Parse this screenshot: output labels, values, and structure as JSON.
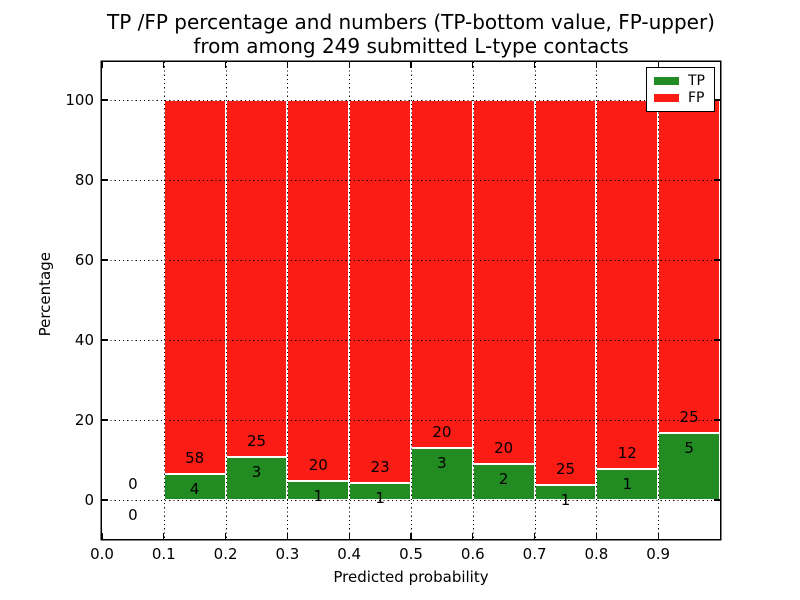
{
  "figure": {
    "title_line1": "TP /FP percentage and numbers (TP-bottom value, FP-upper)",
    "title_line2": "from among 249 submitted L-type contacts"
  },
  "chart_data": {
    "type": "bar",
    "stacked": true,
    "normalized_to_percent": 100,
    "title": "TP /FP percentage and numbers (TP-bottom value, FP-upper) from among 249 submitted L-type contacts",
    "total_contacts": 249,
    "xlabel": "Predicted probability",
    "ylabel": "Percentage",
    "xlim": [
      0.0,
      1.0
    ],
    "ylim": [
      -9.75,
      109.5
    ],
    "grid": "dotted, drawn above bars",
    "xtick_values": [
      0.0,
      0.1,
      0.2,
      0.3,
      0.4,
      0.5,
      0.6,
      0.7,
      0.8,
      0.9
    ],
    "xtick_labels": [
      "0.0",
      "0.1",
      "0.2",
      "0.3",
      "0.4",
      "0.5",
      "0.6",
      "0.7",
      "0.8",
      "0.9"
    ],
    "ytick_values": [
      0,
      20,
      40,
      60,
      80,
      100
    ],
    "ytick_labels": [
      "0",
      "20",
      "40",
      "60",
      "80",
      "100"
    ],
    "legend": {
      "position": "upper right",
      "entries": [
        {
          "label": "TP",
          "color_key": "tp"
        },
        {
          "label": "FP",
          "color_key": "fp"
        }
      ]
    },
    "colors": {
      "tp": "#228b22",
      "fp": "#fb1d15"
    },
    "series": [
      {
        "name": "TP",
        "counts": [
          0,
          4,
          3,
          1,
          1,
          3,
          2,
          1,
          1,
          5
        ]
      },
      {
        "name": "FP",
        "counts": [
          0,
          58,
          25,
          20,
          23,
          20,
          20,
          25,
          12,
          25
        ]
      }
    ],
    "bins": [
      {
        "x0": 0.0,
        "x1": 0.1,
        "tp_count": 0,
        "fp_count": 0,
        "tp_pct": 0,
        "fp_pct": 0,
        "draw_bar": false
      },
      {
        "x0": 0.1,
        "x1": 0.2,
        "tp_count": 4,
        "fp_count": 58,
        "tp_pct": 6.45,
        "fp_pct": 93.55,
        "draw_bar": true
      },
      {
        "x0": 0.2,
        "x1": 0.3,
        "tp_count": 3,
        "fp_count": 25,
        "tp_pct": 10.71,
        "fp_pct": 89.29,
        "draw_bar": true
      },
      {
        "x0": 0.3,
        "x1": 0.4,
        "tp_count": 1,
        "fp_count": 20,
        "tp_pct": 4.76,
        "fp_pct": 95.24,
        "draw_bar": true
      },
      {
        "x0": 0.4,
        "x1": 0.5,
        "tp_count": 1,
        "fp_count": 23,
        "tp_pct": 4.17,
        "fp_pct": 95.83,
        "draw_bar": true
      },
      {
        "x0": 0.5,
        "x1": 0.6,
        "tp_count": 3,
        "fp_count": 20,
        "tp_pct": 13.04,
        "fp_pct": 86.96,
        "draw_bar": true
      },
      {
        "x0": 0.6,
        "x1": 0.7,
        "tp_count": 2,
        "fp_count": 20,
        "tp_pct": 9.09,
        "fp_pct": 90.91,
        "draw_bar": true
      },
      {
        "x0": 0.7,
        "x1": 0.8,
        "tp_count": 1,
        "fp_count": 25,
        "tp_pct": 3.85,
        "fp_pct": 96.15,
        "draw_bar": true
      },
      {
        "x0": 0.8,
        "x1": 0.9,
        "tp_count": 1,
        "fp_count": 12,
        "tp_pct": 7.69,
        "fp_pct": 92.31,
        "draw_bar": true
      },
      {
        "x0": 0.9,
        "x1": 1.0,
        "tp_count": 5,
        "fp_count": 25,
        "tp_pct": 16.67,
        "fp_pct": 83.33,
        "draw_bar": true
      }
    ]
  }
}
